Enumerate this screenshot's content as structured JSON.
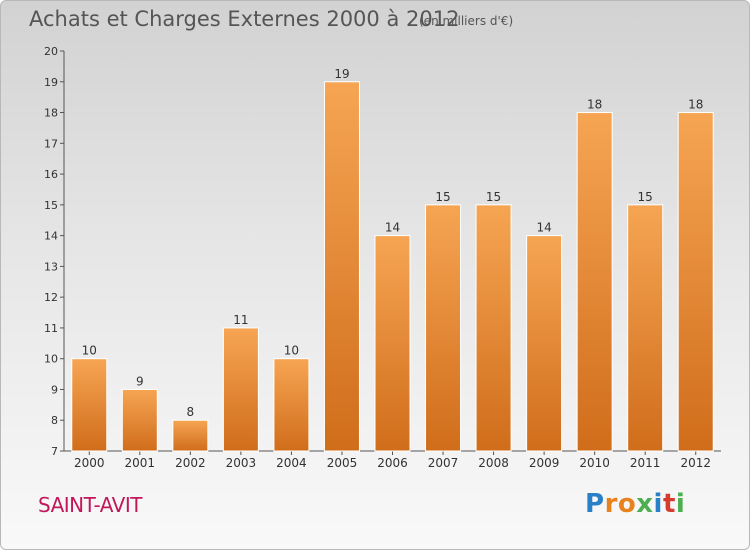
{
  "title": "Achats et Charges Externes 2000 à 2012",
  "subtitle": "(en milliers d'€)",
  "commune": "SAINT-AVIT",
  "logo": {
    "text": "Proxiti",
    "letters": [
      {
        "ch": "P",
        "color": "#2a7fc9"
      },
      {
        "ch": "r",
        "color": "#e8821e"
      },
      {
        "ch": "o",
        "color": "#e8821e"
      },
      {
        "ch": "x",
        "color": "#4caf50"
      },
      {
        "ch": "i",
        "color": "#2a7fc9"
      },
      {
        "ch": "t",
        "color": "#d63b2f"
      },
      {
        "ch": "i",
        "color": "#4caf50"
      }
    ]
  },
  "colors": {
    "bar_light": "#f6a553",
    "bar_dark": "#d06d1b",
    "bar_stroke": "#ffffff",
    "axis": "#555555",
    "grid": "#cccccc",
    "text": "#333333"
  },
  "chart_data": {
    "type": "bar",
    "title": "Achats et Charges Externes 2000 à 2012",
    "subtitle": "(en milliers d'€)",
    "categories": [
      "2000",
      "2001",
      "2002",
      "2003",
      "2004",
      "2005",
      "2006",
      "2007",
      "2008",
      "2009",
      "2010",
      "2011",
      "2012"
    ],
    "values": [
      10,
      9,
      8,
      11,
      10,
      19,
      14,
      15,
      15,
      14,
      18,
      15,
      18
    ],
    "ylim": [
      7,
      20
    ],
    "yticks": [
      7,
      8,
      9,
      10,
      11,
      12,
      13,
      14,
      15,
      16,
      17,
      18,
      19,
      20
    ],
    "grid": false,
    "data_labels": true
  }
}
